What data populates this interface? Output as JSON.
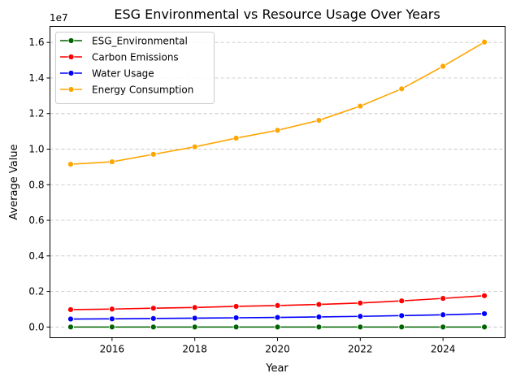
{
  "chart_data": {
    "type": "line",
    "title": "ESG Environmental vs Resource Usage Over Years",
    "xlabel": "Year",
    "ylabel": "Average Value",
    "y_offset_label": "1e7",
    "x": [
      2015,
      2016,
      2017,
      2018,
      2019,
      2020,
      2021,
      2022,
      2023,
      2024,
      2025
    ],
    "xlim": [
      2014.5,
      2025.5
    ],
    "ylim": [
      -600000,
      16900000
    ],
    "x_ticks": [
      2016,
      2018,
      2020,
      2022,
      2024
    ],
    "x_tick_labels": [
      "2016",
      "2018",
      "2020",
      "2022",
      "2024"
    ],
    "y_ticks": [
      0,
      2000000,
      4000000,
      6000000,
      8000000,
      10000000,
      12000000,
      14000000,
      16000000
    ],
    "y_tick_labels": [
      "0.0",
      "0.2",
      "0.4",
      "0.6",
      "0.8",
      "1.0",
      "1.2",
      "1.4",
      "1.6"
    ],
    "grid": "y-dashed",
    "legend_position": "top-left",
    "series": [
      {
        "name": "ESG_Environmental",
        "color": "#006400",
        "values": [
          50,
          50,
          50,
          50,
          50,
          50,
          50,
          50,
          50,
          50,
          50
        ]
      },
      {
        "name": "Carbon Emissions",
        "color": "#ff0000",
        "values": [
          980000,
          1010000,
          1060000,
          1100000,
          1160000,
          1210000,
          1270000,
          1350000,
          1470000,
          1610000,
          1760000
        ]
      },
      {
        "name": "Water Usage",
        "color": "#0000ff",
        "values": [
          450000,
          460000,
          480000,
          500000,
          520000,
          540000,
          570000,
          600000,
          640000,
          690000,
          750000
        ]
      },
      {
        "name": "Energy Consumption",
        "color": "#ffa500",
        "values": [
          9150000,
          9290000,
          9710000,
          10130000,
          10620000,
          11060000,
          11620000,
          12420000,
          13390000,
          14660000,
          16020000
        ]
      }
    ]
  }
}
